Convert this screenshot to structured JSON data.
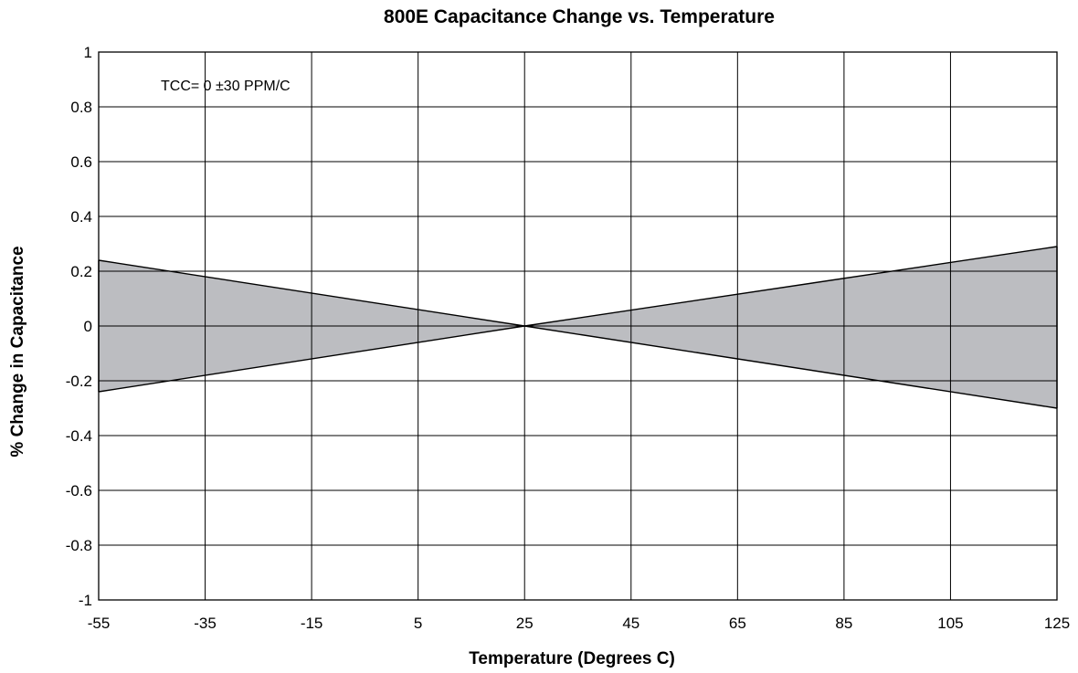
{
  "chart_data": {
    "type": "area",
    "title": "800E Capacitance Change vs. Temperature",
    "xlabel": "Temperature (Degrees C)",
    "ylabel": "% Change in Capacitance",
    "annotation": "TCC= 0 ±30 PPM/C",
    "xlim": [
      -55,
      125
    ],
    "ylim": [
      -1,
      1
    ],
    "x_ticks": [
      -55,
      -35,
      -15,
      5,
      25,
      45,
      65,
      85,
      105,
      125
    ],
    "y_ticks": [
      -1,
      -0.8,
      -0.6,
      -0.4,
      -0.2,
      0,
      0.2,
      0.4,
      0.6,
      0.8,
      1
    ],
    "x_tick_labels": [
      "-55",
      "-35",
      "-15",
      "5",
      "25",
      "45",
      "65",
      "85",
      "105",
      "125"
    ],
    "y_tick_labels": [
      "-1",
      "-0.8",
      "-0.6",
      "-0.4",
      "-0.2",
      "0",
      "0.2",
      "0.4",
      "0.6",
      "0.8",
      "1"
    ],
    "grid": true,
    "series": [
      {
        "x": [
          -55,
          25,
          125
        ],
        "values": [
          0.24,
          0,
          0.29
        ]
      },
      {
        "x": [
          -55,
          25,
          125
        ],
        "values": [
          -0.24,
          0,
          -0.3
        ]
      }
    ],
    "fill_color": "#bcbdc1",
    "line_color": "#000000"
  }
}
